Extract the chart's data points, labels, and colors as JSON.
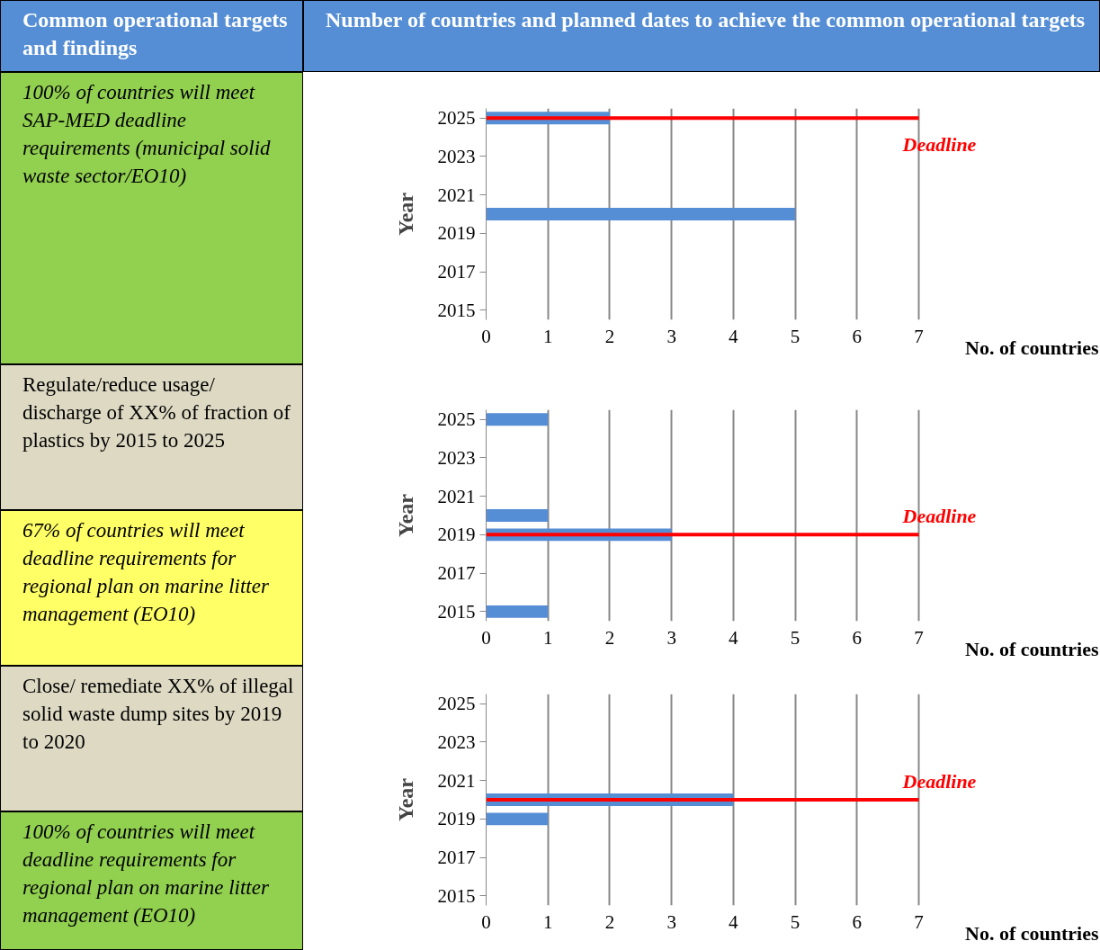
{
  "chart_data": [
    {
      "type": "bar",
      "orientation": "horizontal",
      "annotations": [
        "Common operational targets and findings",
        "Number of countries and planned dates to achieve the common operational targets",
        "100% of countries will meet SAP-MED deadline requirements (municipal solid waste sector/EO10)"
      ],
      "xlabel": "No. of countries",
      "ylabel": "Year",
      "x": [
        2025,
        2020
      ],
      "values": [
        2,
        5
      ],
      "color": "#558ed5",
      "xlim": [
        0,
        7
      ],
      "xticks": [
        0,
        1,
        2,
        3,
        4,
        5,
        6,
        7
      ],
      "ylim": [
        2014.5,
        2025.5
      ],
      "yticks": [
        2015,
        2017,
        2019,
        2021,
        2023,
        2025
      ],
      "grid": "x",
      "ref_lines": [
        {
          "axis": "y",
          "value": 2025,
          "label": "Deadline",
          "color": "#ff0000"
        }
      ]
    },
    {
      "type": "bar",
      "orientation": "horizontal",
      "annotations": [
        "Regulate/reduce usage/ discharge of XX% of fraction of plastics by 2015 to 2025",
        "67% of countries will meet deadline requirements for regional plan on marine litter management (EO10)"
      ],
      "xlabel": "No. of countries",
      "ylabel": "Year",
      "x": [
        2025,
        2020,
        2019,
        2015
      ],
      "values": [
        1,
        1,
        3,
        1
      ],
      "color": "#558ed5",
      "xlim": [
        0,
        7
      ],
      "xticks": [
        0,
        1,
        2,
        3,
        4,
        5,
        6,
        7
      ],
      "ylim": [
        2014.5,
        2025.5
      ],
      "yticks": [
        2015,
        2017,
        2019,
        2021,
        2023,
        2025
      ],
      "grid": "x",
      "ref_lines": [
        {
          "axis": "y",
          "value": 2019,
          "label": "Deadline",
          "color": "#ff0000"
        }
      ]
    },
    {
      "type": "bar",
      "orientation": "horizontal",
      "annotations": [
        "Close/ remediate XX% of illegal solid waste dump sites by 2019 to 2020",
        "100% of countries will meet deadline requirements for regional plan on marine litter management (EO10)"
      ],
      "xlabel": "No. of countries",
      "ylabel": "Year",
      "x": [
        2020,
        2019
      ],
      "values": [
        4,
        1
      ],
      "color": "#558ed5",
      "xlim": [
        0,
        7
      ],
      "xticks": [
        0,
        1,
        2,
        3,
        4,
        5,
        6,
        7
      ],
      "ylim": [
        2014.5,
        2025.5
      ],
      "yticks": [
        2015,
        2017,
        2019,
        2021,
        2023,
        2025
      ],
      "grid": "x",
      "ref_lines": [
        {
          "axis": "y",
          "value": 2020,
          "label": "Deadline",
          "color": "#ff0000"
        }
      ]
    }
  ]
}
